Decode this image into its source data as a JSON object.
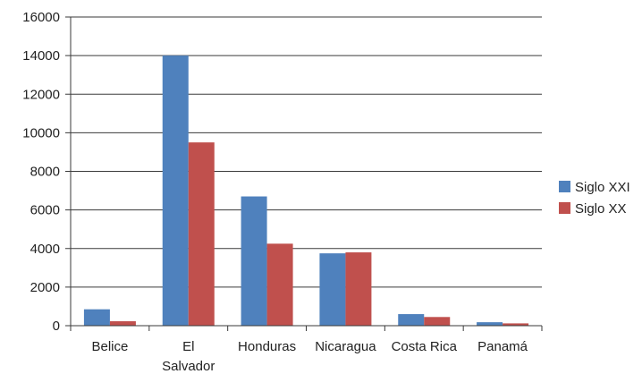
{
  "chart_data": {
    "type": "bar",
    "title": "",
    "xlabel": "",
    "ylabel": "",
    "categories": [
      [
        "Belice"
      ],
      [
        "El",
        "Salvador"
      ],
      [
        "Honduras"
      ],
      [
        "Nicaragua"
      ],
      [
        "Costa Rica"
      ],
      [
        "Panamá"
      ]
    ],
    "series": [
      {
        "name": "Siglo XXI",
        "color": "#4f81bd",
        "values": [
          850,
          14000,
          6700,
          3750,
          600,
          180
        ]
      },
      {
        "name": "Siglo XX",
        "color": "#c0504d",
        "values": [
          230,
          9500,
          4250,
          3800,
          450,
          120
        ]
      }
    ],
    "ylim": [
      0,
      16000
    ],
    "yticks": [
      0,
      2000,
      4000,
      6000,
      8000,
      10000,
      12000,
      14000,
      16000
    ],
    "grid": true,
    "legend": "right"
  }
}
